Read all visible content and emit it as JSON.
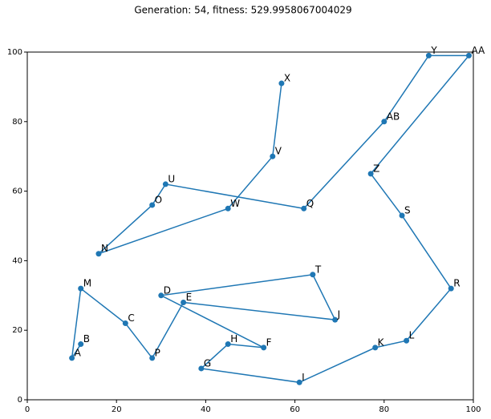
{
  "chart_data": {
    "type": "line",
    "title": "Generation: 54, fitness: 529.9958067004029",
    "labels": [
      "X",
      "V",
      "W",
      "N",
      "O",
      "U",
      "Q",
      "AB",
      "Y",
      "AA",
      "Z",
      "S",
      "R",
      "L",
      "K",
      "I",
      "G",
      "H",
      "F",
      "D",
      "T",
      "J",
      "E",
      "P",
      "C",
      "M",
      "A",
      "B"
    ],
    "x": [
      57,
      55,
      45,
      16,
      28,
      31,
      62,
      80,
      90,
      99,
      77,
      84,
      95,
      85,
      78,
      61,
      39,
      45,
      53,
      30,
      64,
      69,
      35,
      28,
      22,
      12,
      10,
      12
    ],
    "values": [
      91,
      70,
      55,
      42,
      56,
      62,
      55,
      80,
      99,
      99,
      65,
      53,
      32,
      17,
      15,
      5,
      9,
      16,
      15,
      30,
      36,
      23,
      28,
      12,
      22,
      32,
      12,
      16
    ],
    "color": "#1f77b4",
    "xlim": [
      0,
      100
    ],
    "ylim": [
      0,
      100
    ],
    "xticks": [
      0,
      20,
      40,
      60,
      80,
      100
    ],
    "yticks": [
      0,
      20,
      40,
      60,
      80,
      100
    ]
  }
}
